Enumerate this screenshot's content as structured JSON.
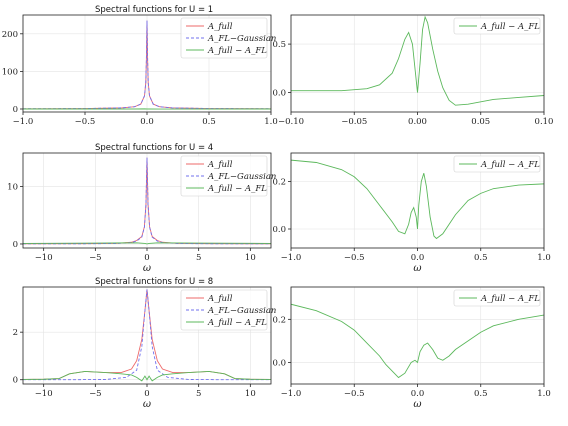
{
  "colors": {
    "full": "#ee6a6a",
    "gaussian": "#7070ee",
    "diff": "#5cb85c"
  },
  "chart_data": [
    {
      "type": "line",
      "title": "Spectral functions for U = 1",
      "xlabel": "",
      "xlim": [
        -1.0,
        1.0
      ],
      "ylim": [
        -8,
        250
      ],
      "xticks": [
        -1.0,
        -0.5,
        0.0,
        0.5,
        1.0
      ],
      "xtick_labels": [
        "−1.0",
        "−0.5",
        "0.0",
        "0.5",
        "1.0"
      ],
      "yticks": [
        0,
        100,
        200
      ],
      "ytick_labels": [
        "0",
        "100",
        "200"
      ],
      "grid": true,
      "legend_position": "top-right",
      "series": [
        {
          "name": "A_full",
          "key": "full",
          "dashed": false,
          "x": [
            -1.0,
            -0.5,
            -0.2,
            -0.1,
            -0.05,
            -0.02,
            -0.01,
            -0.005,
            0.0,
            0.005,
            0.01,
            0.02,
            0.05,
            0.1,
            0.2,
            0.5,
            1.0
          ],
          "y": [
            0.6,
            1.2,
            3,
            6,
            13,
            35,
            70,
            130,
            235,
            130,
            70,
            35,
            13,
            6,
            3,
            1.2,
            0.6
          ]
        },
        {
          "name": "A_FL−Gaussian",
          "key": "gaussian",
          "dashed": true,
          "x": [
            -1.0,
            -0.5,
            -0.2,
            -0.1,
            -0.05,
            -0.02,
            -0.01,
            -0.005,
            0.0,
            0.005,
            0.01,
            0.02,
            0.05,
            0.1,
            0.2,
            0.5,
            1.0
          ],
          "y": [
            0.6,
            1.2,
            3,
            6,
            13,
            35,
            70,
            130,
            235,
            130,
            70,
            35,
            13,
            6,
            3,
            1.2,
            0.6
          ]
        },
        {
          "name": "A_full − A_FL",
          "key": "diff",
          "dashed": false,
          "x": [
            -1.0,
            -0.1,
            -0.02,
            0.0,
            0.02,
            0.1,
            1.0
          ],
          "y": [
            0.0,
            0.0,
            0.3,
            0.0,
            0.2,
            -0.1,
            0.0
          ]
        }
      ]
    },
    {
      "type": "line",
      "title": "",
      "xlabel": "",
      "xlim": [
        -0.1,
        0.1
      ],
      "ylim": [
        -0.2,
        0.8
      ],
      "xticks": [
        -0.1,
        -0.05,
        0.0,
        0.05,
        0.1
      ],
      "xtick_labels": [
        "−0.10",
        "−0.05",
        "0.00",
        "0.05",
        "0.10"
      ],
      "yticks": [
        0.0,
        0.5
      ],
      "ytick_labels": [
        "0.0",
        "0.5"
      ],
      "grid": true,
      "legend_position": "top-right",
      "series": [
        {
          "name": "A_full − A_FL",
          "key": "diff",
          "dashed": false,
          "x": [
            -0.1,
            -0.06,
            -0.04,
            -0.03,
            -0.02,
            -0.015,
            -0.01,
            -0.007,
            -0.004,
            -0.002,
            0.0,
            0.002,
            0.004,
            0.006,
            0.008,
            0.012,
            0.016,
            0.02,
            0.025,
            0.03,
            0.04,
            0.06,
            0.08,
            0.1
          ],
          "y": [
            0.02,
            0.02,
            0.04,
            0.08,
            0.2,
            0.35,
            0.55,
            0.62,
            0.5,
            0.25,
            0.0,
            0.3,
            0.65,
            0.78,
            0.72,
            0.45,
            0.22,
            0.05,
            -0.08,
            -0.13,
            -0.12,
            -0.07,
            -0.05,
            -0.03
          ]
        }
      ]
    },
    {
      "type": "line",
      "title": "Spectral functions for U = 4",
      "xlabel": "ω",
      "xlim": [
        -12,
        12
      ],
      "ylim": [
        -0.7,
        15.8
      ],
      "xticks": [
        -10,
        -5,
        0,
        5,
        10
      ],
      "xtick_labels": [
        "−10",
        "−5",
        "0",
        "5",
        "10"
      ],
      "yticks": [
        0,
        10
      ],
      "ytick_labels": [
        "0",
        "10"
      ],
      "grid": true,
      "legend_position": "top-right",
      "series": [
        {
          "name": "A_full",
          "key": "full",
          "dashed": false,
          "x": [
            -12,
            -6,
            -3,
            -1.5,
            -1,
            -0.5,
            -0.25,
            -0.1,
            0.0,
            0.1,
            0.25,
            0.5,
            1,
            1.5,
            3,
            6,
            12
          ],
          "y": [
            0.02,
            0.05,
            0.1,
            0.3,
            0.6,
            1.3,
            3,
            7,
            15,
            7,
            3,
            1.3,
            0.6,
            0.3,
            0.1,
            0.05,
            0.02
          ]
        },
        {
          "name": "A_FL−Gaussian",
          "key": "gaussian",
          "dashed": true,
          "x": [
            -12,
            -6,
            -3,
            -1.5,
            -1,
            -0.5,
            -0.25,
            -0.1,
            0.0,
            0.1,
            0.25,
            0.5,
            1,
            1.5,
            3,
            6,
            12
          ],
          "y": [
            0.02,
            0.04,
            0.08,
            0.25,
            0.5,
            1.2,
            2.9,
            6.9,
            15,
            6.9,
            2.9,
            1.2,
            0.5,
            0.25,
            0.08,
            0.04,
            0.02
          ]
        },
        {
          "name": "A_full − A_FL",
          "key": "diff",
          "dashed": false,
          "x": [
            -12,
            -5,
            -1,
            -0.2,
            0.0,
            0.2,
            1,
            5,
            12
          ],
          "y": [
            0.1,
            0.15,
            0.2,
            0.1,
            0.0,
            0.1,
            0.2,
            0.15,
            0.1
          ]
        }
      ]
    },
    {
      "type": "line",
      "title": "",
      "xlabel": "ω",
      "xlim": [
        -1.0,
        1.0
      ],
      "ylim": [
        -0.08,
        0.32
      ],
      "xticks": [
        -1.0,
        -0.5,
        0.0,
        0.5,
        1.0
      ],
      "xtick_labels": [
        "−1.0",
        "−0.5",
        "0.0",
        "0.5",
        "1.0"
      ],
      "yticks": [
        0.0,
        0.2
      ],
      "ytick_labels": [
        "0.0",
        "0.2"
      ],
      "grid": true,
      "legend_position": "top-right",
      "series": [
        {
          "name": "A_full − A_FL",
          "key": "diff",
          "dashed": false,
          "x": [
            -1.0,
            -0.8,
            -0.6,
            -0.5,
            -0.4,
            -0.3,
            -0.2,
            -0.15,
            -0.1,
            -0.07,
            -0.05,
            -0.03,
            -0.01,
            0.0,
            0.01,
            0.03,
            0.05,
            0.07,
            0.1,
            0.13,
            0.15,
            0.2,
            0.3,
            0.4,
            0.5,
            0.6,
            0.8,
            1.0
          ],
          "y": [
            0.29,
            0.28,
            0.25,
            0.22,
            0.17,
            0.1,
            0.03,
            -0.01,
            -0.02,
            0.02,
            0.07,
            0.09,
            0.05,
            0.0,
            0.1,
            0.2,
            0.235,
            0.18,
            0.05,
            -0.03,
            -0.04,
            -0.02,
            0.06,
            0.12,
            0.15,
            0.17,
            0.185,
            0.19
          ]
        }
      ]
    },
    {
      "type": "line",
      "title": "Spectral functions for U = 8",
      "xlabel": "ω",
      "xlim": [
        -12,
        12
      ],
      "ylim": [
        -0.18,
        3.9
      ],
      "xticks": [
        -10,
        -5,
        0,
        5,
        10
      ],
      "xtick_labels": [
        "−10",
        "−5",
        "0",
        "5",
        "10"
      ],
      "yticks": [
        0,
        2
      ],
      "ytick_labels": [
        "0",
        "2"
      ],
      "grid": true,
      "legend_position": "top-right",
      "series": [
        {
          "name": "A_full",
          "key": "full",
          "dashed": false,
          "x": [
            -12,
            -10,
            -8.5,
            -7.5,
            -6,
            -4,
            -2.5,
            -1.5,
            -1,
            -0.5,
            -0.2,
            0.0,
            0.2,
            0.5,
            1,
            1.5,
            2.5,
            4,
            6,
            7.5,
            8.5,
            10,
            12
          ],
          "y": [
            0.01,
            0.02,
            0.05,
            0.25,
            0.35,
            0.3,
            0.3,
            0.45,
            0.8,
            1.7,
            2.9,
            3.8,
            2.9,
            1.7,
            0.8,
            0.45,
            0.3,
            0.3,
            0.35,
            0.25,
            0.05,
            0.02,
            0.01
          ]
        },
        {
          "name": "A_FL−Gaussian",
          "key": "gaussian",
          "dashed": true,
          "x": [
            -12,
            -8,
            -4,
            -2,
            -1,
            -0.5,
            -0.2,
            0.0,
            0.2,
            0.5,
            1,
            2,
            4,
            8,
            12
          ],
          "y": [
            0.0,
            0.0,
            0.01,
            0.1,
            0.4,
            1.4,
            2.9,
            3.8,
            2.9,
            1.4,
            0.4,
            0.1,
            0.01,
            0.0,
            0.0
          ]
        },
        {
          "name": "A_full − A_FL",
          "key": "diff",
          "dashed": false,
          "x": [
            -12,
            -10,
            -8.5,
            -7.5,
            -6,
            -4,
            -2.5,
            -1.5,
            -1,
            -0.5,
            -0.2,
            0.0,
            0.2,
            0.5,
            1,
            1.5,
            2.5,
            4,
            6,
            7.5,
            8.5,
            10,
            12
          ],
          "y": [
            0.01,
            0.02,
            0.05,
            0.25,
            0.35,
            0.3,
            0.25,
            0.2,
            0.1,
            -0.05,
            0.15,
            0.0,
            0.15,
            -0.05,
            0.1,
            0.2,
            0.25,
            0.3,
            0.35,
            0.25,
            0.05,
            0.02,
            0.01
          ]
        }
      ]
    },
    {
      "type": "line",
      "title": "",
      "xlabel": "ω",
      "xlim": [
        -1.0,
        1.0
      ],
      "ylim": [
        -0.1,
        0.35
      ],
      "xticks": [
        -1.0,
        -0.5,
        0.0,
        0.5,
        1.0
      ],
      "xtick_labels": [
        "−1.0",
        "−0.5",
        "0.0",
        "0.5",
        "1.0"
      ],
      "yticks": [
        0.0,
        0.2
      ],
      "ytick_labels": [
        "0.0",
        "0.2"
      ],
      "grid": true,
      "legend_position": "top-right",
      "series": [
        {
          "name": "A_full − A_FL",
          "key": "diff",
          "dashed": false,
          "x": [
            -1.0,
            -0.8,
            -0.6,
            -0.5,
            -0.4,
            -0.3,
            -0.25,
            -0.2,
            -0.15,
            -0.1,
            -0.05,
            -0.02,
            0.0,
            0.02,
            0.05,
            0.08,
            0.12,
            0.16,
            0.2,
            0.25,
            0.3,
            0.4,
            0.5,
            0.6,
            0.8,
            1.0
          ],
          "y": [
            0.27,
            0.24,
            0.19,
            0.15,
            0.09,
            0.03,
            -0.01,
            -0.04,
            -0.07,
            -0.05,
            0.0,
            0.01,
            0.0,
            0.05,
            0.08,
            0.09,
            0.06,
            0.02,
            0.01,
            0.03,
            0.06,
            0.1,
            0.14,
            0.17,
            0.2,
            0.22
          ]
        }
      ]
    }
  ]
}
